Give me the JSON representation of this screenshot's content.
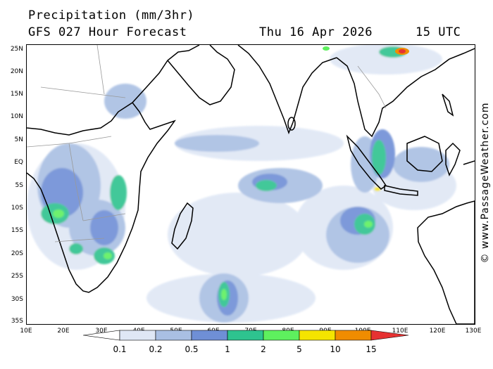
{
  "header": {
    "title": "Precipitation (mm/3hr)",
    "subtitle": "GFS 027 Hour Forecast",
    "date": "Thu 16 Apr 2026",
    "time": "15 UTC"
  },
  "credit": "© www.PassageWeather.com",
  "map": {
    "region": "Indian Ocean",
    "lat_labels": [
      "25N",
      "20N",
      "15N",
      "10N",
      "5N",
      "EQ",
      "5S",
      "10S",
      "15S",
      "20S",
      "25S",
      "30S",
      "35S"
    ],
    "lon_labels": [
      "10E",
      "20E",
      "30E",
      "40E",
      "50E",
      "60E",
      "70E",
      "80E",
      "90E",
      "100E",
      "110E",
      "120E",
      "130E"
    ],
    "colors": {
      "land_border": "#000000",
      "country_border": "#999999",
      "water": "#ffffff"
    }
  },
  "legend": {
    "labels": [
      "0.1",
      "0.2",
      "0.5",
      "1",
      "2",
      "5",
      "10",
      "15"
    ],
    "colors": [
      "#ffffff",
      "#dfe7f5",
      "#a9bfe3",
      "#6f8fd6",
      "#2ec38f",
      "#5ef05e",
      "#f4e400",
      "#f08c00",
      "#e63232"
    ]
  }
}
